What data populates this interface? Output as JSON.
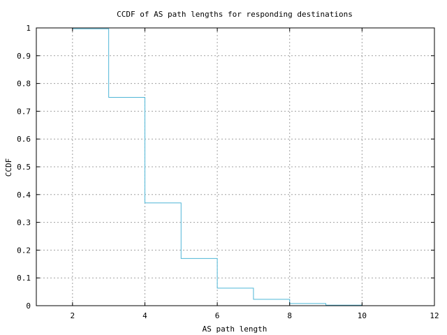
{
  "chart_data": {
    "type": "line",
    "step": "post",
    "title": "CCDF of AS path lengths for responding destinations",
    "xlabel": "AS path length",
    "ylabel": "CCDF",
    "xlim": [
      1,
      12
    ],
    "ylim": [
      0,
      1
    ],
    "xticks": [
      "2",
      "4",
      "6",
      "8",
      "10",
      "12"
    ],
    "yticks": [
      "0",
      "0.1",
      "0.2",
      "0.3",
      "0.4",
      "0.5",
      "0.6",
      "0.7",
      "0.8",
      "0.9",
      "1"
    ],
    "grid": true,
    "series": [
      {
        "color": "#4fb6d6",
        "x": [
          2,
          3,
          4,
          5,
          6,
          7,
          8,
          9,
          10
        ],
        "y": [
          0.997,
          0.75,
          0.37,
          0.17,
          0.063,
          0.023,
          0.008,
          0.002,
          0.001
        ]
      }
    ]
  }
}
